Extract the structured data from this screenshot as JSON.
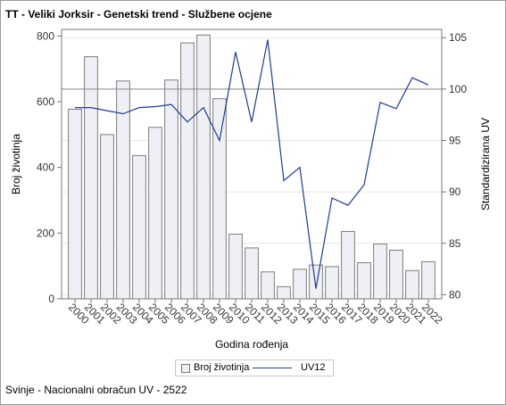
{
  "title": "TT - Veliki Jorksir - Genetski trend - Službene ocjene",
  "footnote": "Svinje - Nacionalni obračun UV - 2522",
  "chart_data": {
    "type": "bar",
    "categories": [
      "2000",
      "2001",
      "2002",
      "2003",
      "2004",
      "2005",
      "2006",
      "2007",
      "2008",
      "2009",
      "2010",
      "2011",
      "2012",
      "2013",
      "2014",
      "2015",
      "2016",
      "2017",
      "2018",
      "2019",
      "2020",
      "2021",
      "2022"
    ],
    "series": [
      {
        "name": "Broj životinja",
        "type": "bar",
        "axis": "left",
        "values": [
          577,
          737,
          500,
          663,
          436,
          522,
          666,
          779,
          803,
          609,
          197,
          155,
          82,
          37,
          90,
          103,
          98,
          205,
          110,
          167,
          148,
          86,
          113
        ]
      },
      {
        "name": "UV12",
        "type": "line",
        "axis": "right",
        "values": [
          98.2,
          98.2,
          97.9,
          97.6,
          98.2,
          98.3,
          98.5,
          96.8,
          98.2,
          95.0,
          103.6,
          96.8,
          104.8,
          91.1,
          92.4,
          80.6,
          89.4,
          88.7,
          90.7,
          98.7,
          98.1,
          101.1,
          100.4
        ]
      }
    ],
    "xlabel": "Godina rođenja",
    "ylabel": "Broj životinja",
    "y2label": "Standardizirana UV",
    "ylim": [
      0,
      820
    ],
    "y2lim": [
      79.6,
      105.8
    ],
    "yticks": [
      0,
      200,
      400,
      600,
      800
    ],
    "y2ticks": [
      80,
      85,
      90,
      95,
      100,
      105
    ],
    "reference_line_y2": 100,
    "grid": true,
    "legend_position": "bottom",
    "colors": {
      "bar_fill": "#eef0f5",
      "bar_stroke": "#7d7d7d",
      "line": "#1f3b91",
      "reference": "#8a8a8a",
      "grid": "#e6e6e6"
    }
  }
}
